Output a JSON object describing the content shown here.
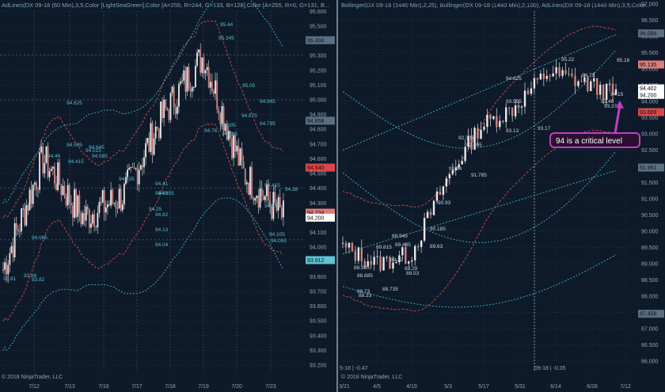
{
  "left": {
    "header": "AdLines(DX 09-18 (60 Min),3,5,Color [LightSeaGreen],Color [A=255, R=244, G=133, B=128],Color [A=255, R=0, G=131, B...",
    "copyright": "© 2018 NinjaTrader, LLC",
    "y_ticks": [
      "95.600",
      "95.500",
      "95.400",
      "95.300",
      "95.200",
      "95.100",
      "95.000",
      "94.900",
      "94.800",
      "94.700",
      "94.600",
      "94.500",
      "94.400",
      "94.300",
      "94.200",
      "94.100",
      "94.000",
      "93.900",
      "93.800",
      "93.700",
      "93.600",
      "93.500",
      "93.400",
      "93.300",
      "93.200"
    ],
    "x_ticks": [
      "7/12",
      "7/13",
      "7/16",
      "7/17",
      "7/18",
      "7/19",
      "7/20",
      "7/23"
    ],
    "price_labels": [
      {
        "text": "95.404",
        "color": "#5a6f84"
      },
      {
        "text": "94.858",
        "color": "#5a6f84"
      },
      {
        "text": "94.540",
        "color": "#d94848"
      },
      {
        "text": "94.234",
        "color": "#e07b78"
      },
      {
        "text": "94.200",
        "color": "#ffffff"
      },
      {
        "text": "93.912",
        "color": "#5fc4d4"
      }
    ],
    "annotations": [
      "95.44",
      "95.345",
      "95.05",
      "94.945",
      "94.795",
      "94.875",
      "94.76",
      "94.785",
      "94.305",
      "94.625",
      "94.505",
      "94.415",
      "94.46",
      "94.515",
      "94.645",
      "94.565",
      "94.435",
      "94.355",
      "94.45",
      "94.41",
      "94.25",
      "94.82",
      "94.13",
      "94.04",
      "94.065",
      "93.84",
      "93.81",
      "93.82",
      "94.415",
      "94.275",
      "94.105",
      "94.055",
      "94.38"
    ]
  },
  "right": {
    "header": "Bollinger(DX 09-18 (1440 Min),2,25),  Bollinger(DX 09-18 (1440 Min),2,100),  AdLines(DX 09-18 (1440 Min),3,5,Color...",
    "copyright": "© 2018 NinjaTrader, LLC",
    "y_ticks": [
      "97.000",
      "96.500",
      "96.000",
      "95.500",
      "95.000",
      "94.500",
      "94.000",
      "93.500",
      "93.000",
      "92.500",
      "92.000",
      "91.500",
      "91.000",
      "90.500",
      "90.000",
      "89.500",
      "89.000",
      "88.500",
      "88.000",
      "87.500",
      "87.000",
      "86.500",
      "86.000"
    ],
    "x_ticks": [
      "3/21",
      "4/5",
      "4/19",
      "5/3",
      "5/17",
      "5/31",
      "6/14",
      "6/28",
      "7/12"
    ],
    "price_labels": [
      {
        "text": "96.094",
        "color": "#5a6f84"
      },
      {
        "text": "95.135",
        "color": "#e07b78"
      },
      {
        "text": "94.402",
        "color": "#ffffff"
      },
      {
        "text": "94.200",
        "color": "#ffffff"
      },
      {
        "text": "93.669",
        "color": "#d94848"
      },
      {
        "text": "91.961",
        "color": "#5a6f84"
      },
      {
        "text": "87.458",
        "color": "#5a6f84"
      }
    ],
    "indicator_left": "5-18 | -0.47",
    "indicator_right": "09-18 | -0.35",
    "annotations": [
      "95.18",
      "95.22",
      "94.73",
      "94.625",
      "94.15",
      "93.995",
      "93.48",
      "93.37",
      "93.17",
      "93.13",
      "92.655",
      "92.305",
      "91.785",
      "91.94",
      "90.93",
      "90.185",
      "89.945",
      "89.815",
      "89.485",
      "89.22",
      "89.63",
      "88.995",
      "88.885",
      "88.29",
      "88.73",
      "88.33",
      "88.735",
      "88.53"
    ],
    "callout": {
      "text": "94 is a critical level",
      "border": "#c040c0"
    }
  },
  "chart_data": [
    {
      "type": "line",
      "title": "DX 09-18 (60 Min)",
      "xlabel": "",
      "ylabel": "",
      "categories": [
        "7/12",
        "7/13",
        "7/16",
        "7/17",
        "7/18",
        "7/19",
        "7/20",
        "7/23"
      ],
      "ylim": [
        93.2,
        95.65
      ],
      "series": [
        {
          "values": [
            93.85,
            94.6,
            94.2,
            94.35,
            94.9,
            95.3,
            94.5,
            94.2
          ]
        }
      ],
      "grid": true
    },
    {
      "type": "line",
      "title": "DX 09-18 (1440 Min)",
      "xlabel": "",
      "ylabel": "",
      "categories": [
        "3/21",
        "4/5",
        "4/19",
        "5/3",
        "5/17",
        "5/31",
        "6/14",
        "6/28",
        "7/12"
      ],
      "ylim": [
        86.0,
        97.0
      ],
      "series": [
        {
          "values": [
            89.5,
            89.0,
            89.3,
            91.5,
            93.2,
            93.8,
            94.9,
            94.6,
            94.2
          ]
        }
      ],
      "grid": true
    }
  ]
}
